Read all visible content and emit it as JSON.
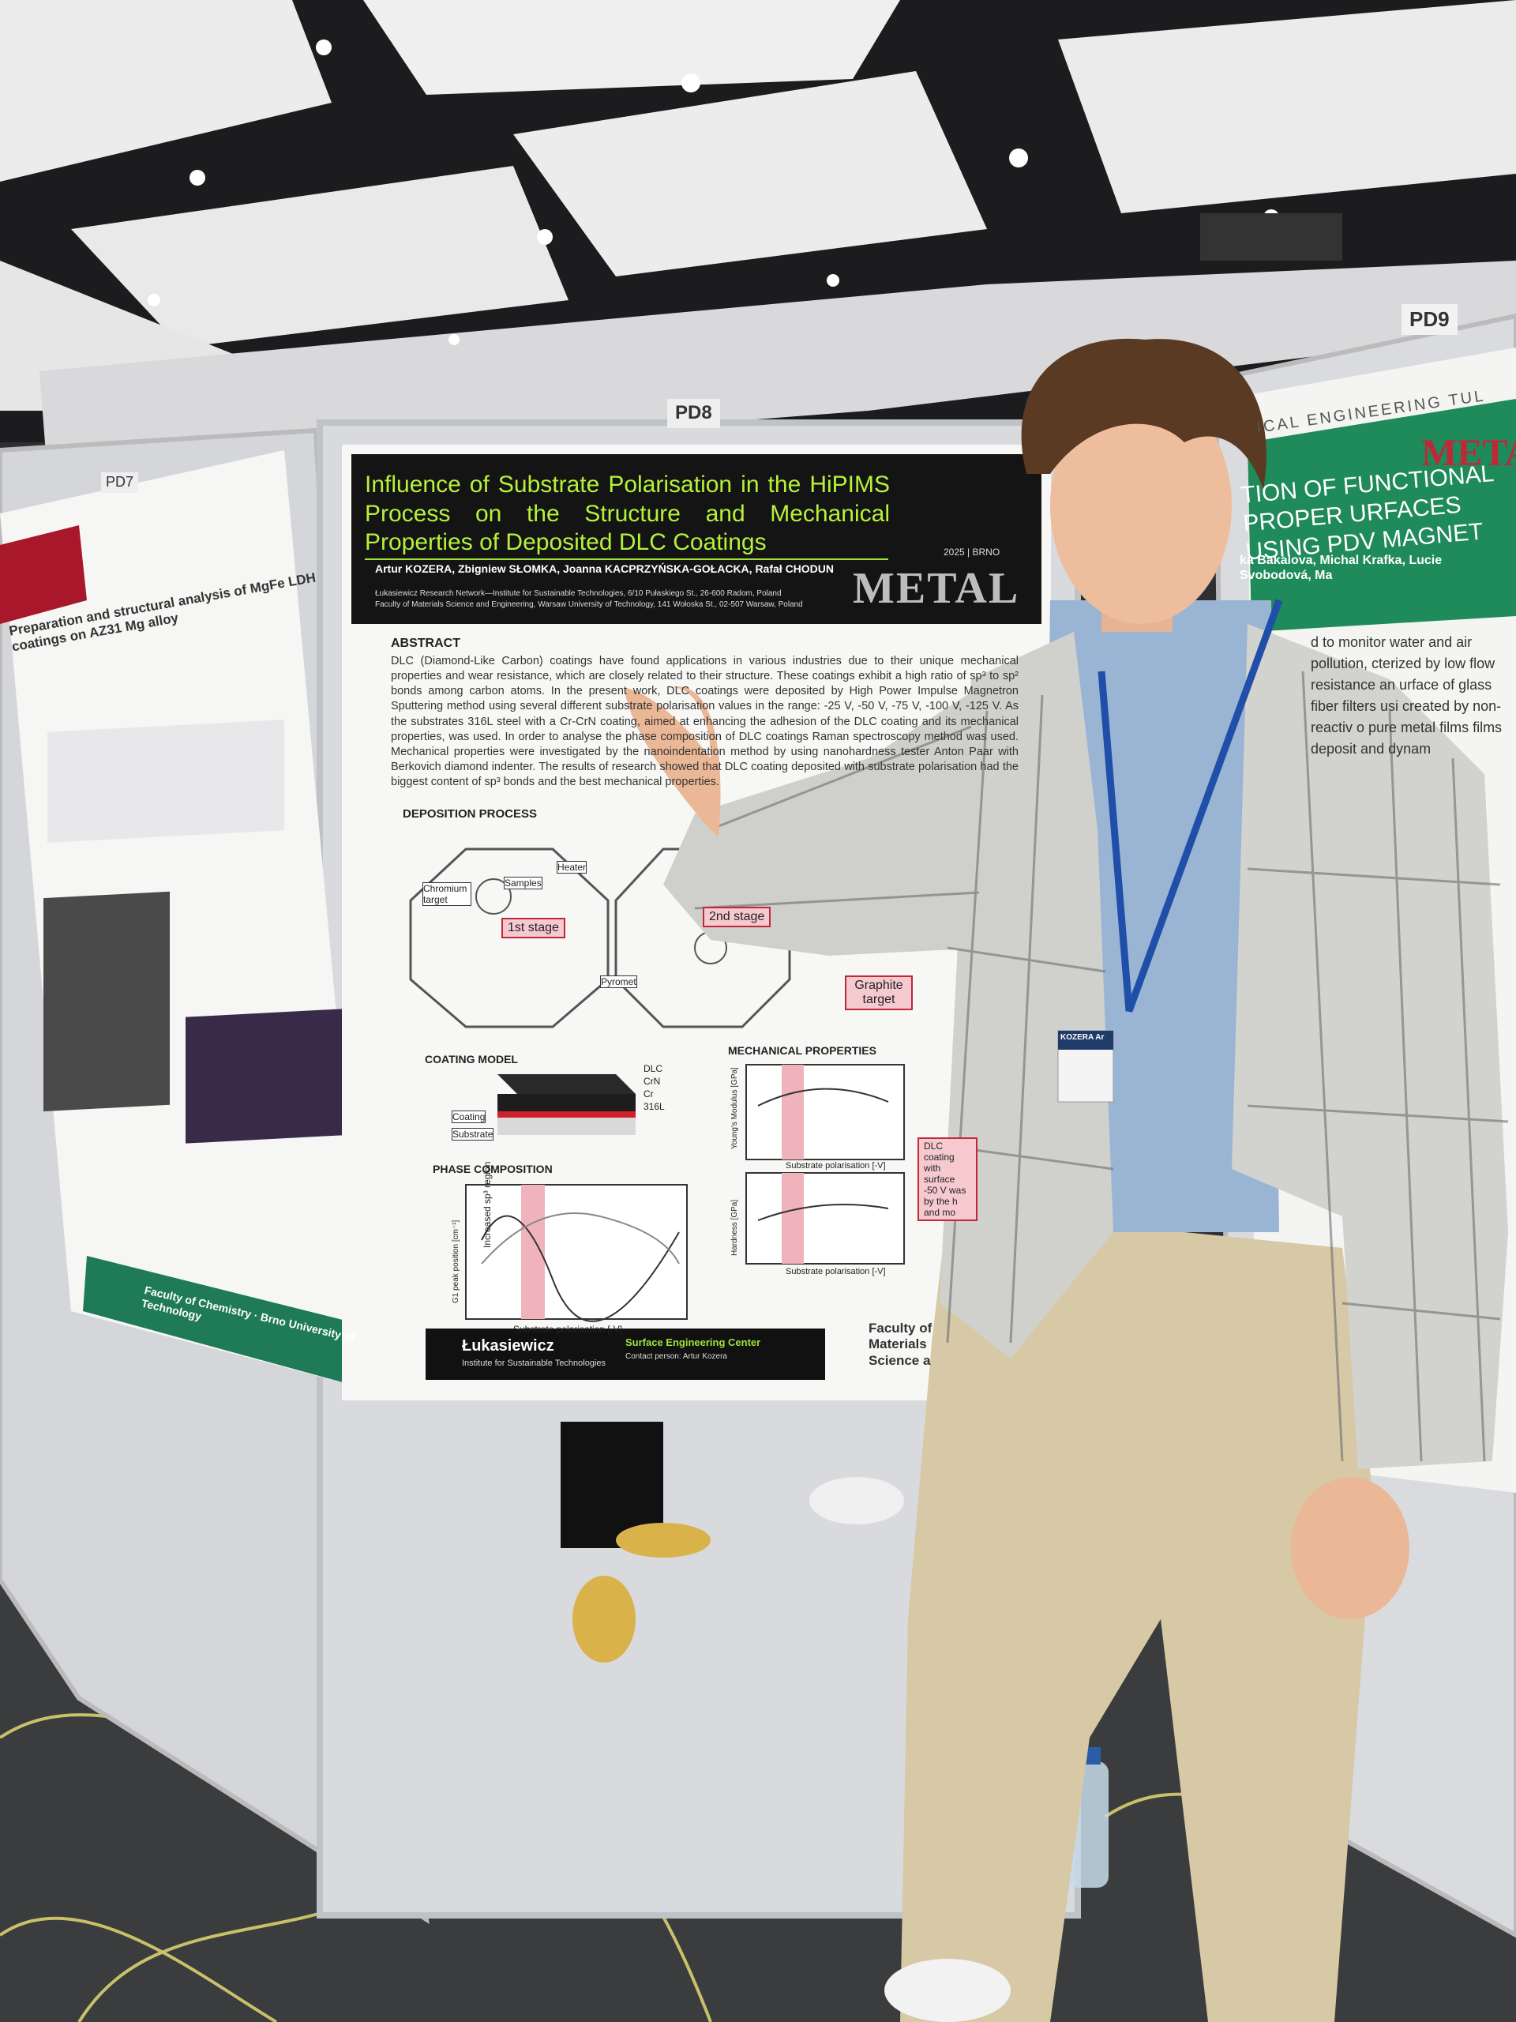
{
  "booths": {
    "pd7": "PD7",
    "pd8": "PD8",
    "pd9": "PD9"
  },
  "main_poster": {
    "title": "Influence of Substrate Polarisation in the HiPIMS Process on the Structure and Mechanical Properties of Deposited DLC Coatings",
    "authors": "Artur KOZERA, Zbigniew SŁOMKA, Joanna KACPRZYŃSKA-GOŁACKA, Rafał CHODUN",
    "affiliation_1": "Łukasiewicz Research Network—Institute for Sustainable Technologies, 6/10 Pułaskiego St., 26-600 Radom, Poland",
    "affiliation_2": "Faculty of Materials Science and Engineering, Warsaw University of Technology, 141 Wołoska St., 02-507 Warsaw, Poland",
    "event_year": "2025 | BRNO",
    "event_logo": "METAL",
    "abstract_heading": "ABSTRACT",
    "abstract_text": "DLC (Diamond-Like Carbon) coatings have found applications in various industries due to their unique mechanical properties and wear resistance, which are closely related to their structure. These coatings exhibit a high ratio of sp³ to sp² bonds among carbon atoms. In the present work, DLC coatings were deposited by High Power Impulse Magnetron Sputtering method using several different substrate polarisation values in the range: -25 V, -50 V, -75 V, -100 V, -125 V. As the substrates 316L steel with a Cr-CrN coating, aimed at enhancing the adhesion of the DLC coating and its mechanical properties, was used. In order to analyse the phase composition of DLC coatings Raman spectroscopy method was used. Mechanical properties were investigated by the nanoindentation method by using nanohardness tester Anton Paar with Berkovich diamond indenter. The results of research showed that DLC coating deposited with substrate polarisation had the biggest content of sp³ bonds and the best mechanical properties.",
    "sections": {
      "deposition": "DEPOSITION PROCESS",
      "coating": "COATING MODEL",
      "phase": "PHASE COMPOSITION",
      "mechanical": "MECHANICAL PROPERTIES"
    },
    "labels": {
      "stage_1": "1st stage",
      "stage_2": "2nd stage",
      "graphite_target": "Graphite target",
      "chromium_target": "Chromium target",
      "samples": "Samples",
      "heater": "Heater",
      "pyrometer": "Pyromet",
      "coating": "Coating",
      "substrate": "Substrate",
      "dlc": "DLC",
      "crn": "CrN",
      "cr": "Cr",
      "steel": "316L",
      "sp3_region": "Increased sp³ region",
      "x_axis": "Substrate polarisation [-V]",
      "y_young": "Young's Modulus [GPa]",
      "y_hardness": "Hardness [GPa]",
      "y_g1": "G1 peak position [cm⁻¹]",
      "conclusion": "DLC coating with surface -50 V was by the h and mo"
    },
    "footer": {
      "org": "Łukasiewicz",
      "org_sub": "Institute for Sustainable Technologies",
      "center": "Surface Engineering Center",
      "contact": "Contact person: Artur Kozera",
      "faculty": "Faculty of Materials Science a"
    }
  },
  "left_poster": {
    "title": "Preparation and structural analysis of MgFe LDH coatings on AZ31 Mg alloy",
    "footer": "Faculty of Chemistry · Brno University of Technology"
  },
  "right_poster": {
    "header": "ICAL ENGINEERING TUL",
    "logo": "METAL",
    "title": "TION OF FUNCTIONAL PROPER URFACES USING PDV MAGNET",
    "authors": "ka Bakalova, Michal Krafka, Lucie Svobodová, Ma",
    "text": "d to monitor water and air pollution, cterized by low flow resistance an urface of glass fiber filters usi created by non-reactiv o pure metal films films deposit and dynam"
  },
  "badge": "KOZERA Ar"
}
